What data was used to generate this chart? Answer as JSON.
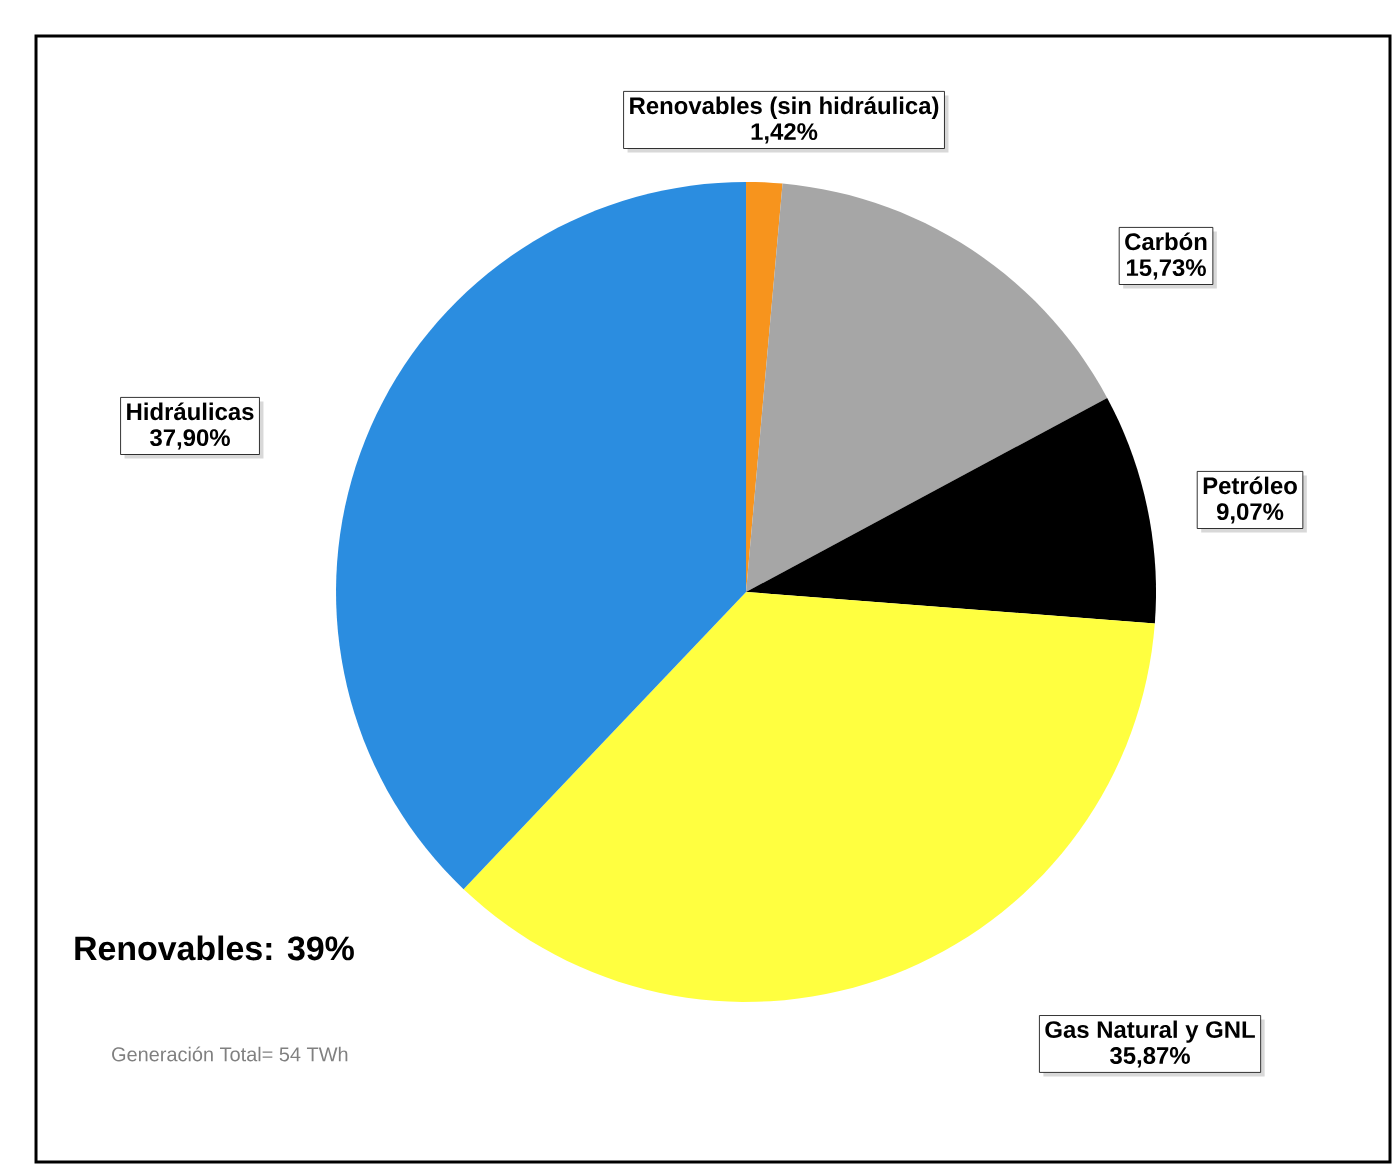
{
  "chart_data": {
    "type": "pie",
    "categories": [
      "Renovables (sin hidráulica)",
      "Carbón",
      "Petróleo",
      "Gas Natural y GNL",
      "Hidráulicas"
    ],
    "values": [
      1.42,
      15.73,
      9.07,
      35.87,
      37.9
    ],
    "value_labels": [
      "1,42%",
      "15,73%",
      "9,07%",
      "35,87%",
      "37,90%"
    ],
    "colors": [
      "#f7941d",
      "#a6a6a6",
      "#000000",
      "#ffff40",
      "#2b8de0"
    ],
    "annotations": [
      "Renovables: 39%",
      "Generación Total= 54 TWh"
    ]
  }
}
